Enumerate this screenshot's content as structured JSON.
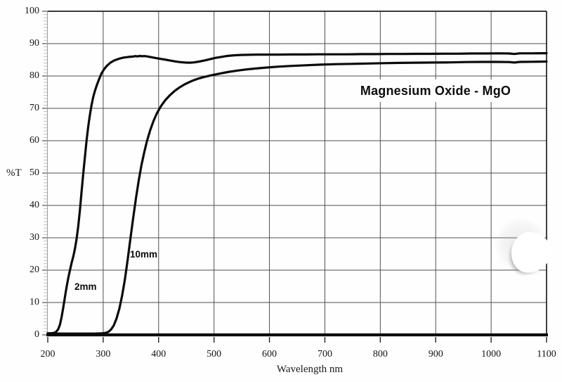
{
  "chart_data": {
    "type": "line",
    "title": "Magnesium Oxide - MgO",
    "xlabel": "Wavelength nm",
    "ylabel": "%T",
    "xlim": [
      200,
      1100
    ],
    "ylim": [
      0,
      100
    ],
    "x_ticks": [
      200,
      300,
      400,
      500,
      600,
      700,
      800,
      900,
      1000,
      1100
    ],
    "y_ticks": [
      0,
      10,
      20,
      30,
      40,
      50,
      60,
      70,
      80,
      90,
      100
    ],
    "y_minor_tick_step": 1,
    "grid": true,
    "legend_position": "labels-next-to-curves",
    "series": [
      {
        "name": "2mm",
        "points": [
          [
            200,
            0.5
          ],
          [
            206,
            0.5
          ],
          [
            211,
            0.6
          ],
          [
            215,
            0.9
          ],
          [
            219,
            1.8
          ],
          [
            222,
            3.2
          ],
          [
            225,
            5.5
          ],
          [
            228,
            8.5
          ],
          [
            231,
            11.8
          ],
          [
            234,
            14.8
          ],
          [
            237,
            17.6
          ],
          [
            240,
            20.0
          ],
          [
            243,
            22.2
          ],
          [
            246,
            24.2
          ],
          [
            249,
            26.6
          ],
          [
            252,
            29.6
          ],
          [
            255,
            33.6
          ],
          [
            258,
            38.6
          ],
          [
            261,
            44.2
          ],
          [
            264,
            49.8
          ],
          [
            267,
            55.0
          ],
          [
            270,
            60.0
          ],
          [
            273,
            64.4
          ],
          [
            276,
            68.0
          ],
          [
            279,
            71.0
          ],
          [
            282,
            73.5
          ],
          [
            285,
            75.4
          ],
          [
            289,
            77.4
          ],
          [
            293,
            79.2
          ],
          [
            297,
            80.8
          ],
          [
            302,
            82.2
          ],
          [
            307,
            83.2
          ],
          [
            313,
            84.1
          ],
          [
            320,
            84.8
          ],
          [
            328,
            85.3
          ],
          [
            337,
            85.7
          ],
          [
            346,
            85.9
          ],
          [
            354,
            86.0
          ],
          [
            358,
            86.15
          ],
          [
            362,
            86.05
          ],
          [
            366,
            86.2
          ],
          [
            370,
            86.1
          ],
          [
            375,
            86.15
          ],
          [
            381,
            86.0
          ],
          [
            390,
            85.7
          ],
          [
            400,
            85.4
          ],
          [
            410,
            85.1
          ],
          [
            420,
            84.8
          ],
          [
            430,
            84.5
          ],
          [
            440,
            84.25
          ],
          [
            448,
            84.15
          ],
          [
            456,
            84.1
          ],
          [
            464,
            84.2
          ],
          [
            473,
            84.45
          ],
          [
            483,
            84.8
          ],
          [
            493,
            85.2
          ],
          [
            503,
            85.6
          ],
          [
            513,
            85.9
          ],
          [
            524,
            86.2
          ],
          [
            536,
            86.4
          ],
          [
            548,
            86.5
          ],
          [
            562,
            86.55
          ],
          [
            578,
            86.6
          ],
          [
            595,
            86.6
          ],
          [
            615,
            86.6
          ],
          [
            640,
            86.65
          ],
          [
            665,
            86.65
          ],
          [
            690,
            86.7
          ],
          [
            715,
            86.7
          ],
          [
            740,
            86.7
          ],
          [
            765,
            86.75
          ],
          [
            790,
            86.75
          ],
          [
            815,
            86.8
          ],
          [
            840,
            86.8
          ],
          [
            865,
            86.85
          ],
          [
            890,
            86.85
          ],
          [
            915,
            86.9
          ],
          [
            940,
            86.9
          ],
          [
            965,
            86.95
          ],
          [
            990,
            86.95
          ],
          [
            1015,
            87.0
          ],
          [
            1032,
            86.95
          ],
          [
            1042,
            86.8
          ],
          [
            1052,
            87.0
          ],
          [
            1075,
            87.0
          ],
          [
            1100,
            87.05
          ]
        ]
      },
      {
        "name": "10mm",
        "points": [
          [
            200,
            0.4
          ],
          [
            250,
            0.4
          ],
          [
            285,
            0.4
          ],
          [
            297,
            0.45
          ],
          [
            304,
            0.6
          ],
          [
            309,
            0.9
          ],
          [
            314,
            1.6
          ],
          [
            319,
            2.9
          ],
          [
            324,
            5.0
          ],
          [
            329,
            8.0
          ],
          [
            334,
            12.0
          ],
          [
            339,
            17.0
          ],
          [
            344,
            23.0
          ],
          [
            349,
            29.5
          ],
          [
            354,
            36.0
          ],
          [
            359,
            42.0
          ],
          [
            364,
            47.6
          ],
          [
            369,
            52.4
          ],
          [
            374,
            56.4
          ],
          [
            379,
            59.9
          ],
          [
            385,
            63.3
          ],
          [
            391,
            66.2
          ],
          [
            397,
            68.5
          ],
          [
            404,
            70.6
          ],
          [
            412,
            72.5
          ],
          [
            420,
            74.0
          ],
          [
            429,
            75.4
          ],
          [
            438,
            76.5
          ],
          [
            448,
            77.5
          ],
          [
            459,
            78.4
          ],
          [
            470,
            79.1
          ],
          [
            482,
            79.7
          ],
          [
            495,
            80.2
          ],
          [
            509,
            80.7
          ],
          [
            524,
            81.2
          ],
          [
            540,
            81.6
          ],
          [
            557,
            82.0
          ],
          [
            575,
            82.3
          ],
          [
            595,
            82.6
          ],
          [
            617,
            82.9
          ],
          [
            640,
            83.1
          ],
          [
            665,
            83.3
          ],
          [
            692,
            83.5
          ],
          [
            720,
            83.65
          ],
          [
            748,
            83.75
          ],
          [
            776,
            83.85
          ],
          [
            805,
            83.95
          ],
          [
            835,
            84.05
          ],
          [
            865,
            84.1
          ],
          [
            895,
            84.15
          ],
          [
            925,
            84.2
          ],
          [
            955,
            84.3
          ],
          [
            985,
            84.35
          ],
          [
            1010,
            84.35
          ],
          [
            1032,
            84.3
          ],
          [
            1042,
            84.15
          ],
          [
            1052,
            84.35
          ],
          [
            1075,
            84.4
          ],
          [
            1100,
            84.45
          ]
        ]
      }
    ]
  },
  "colors": {
    "curve": "#0a0a0a",
    "grid": "#4f4f4f",
    "axis_heavy": "#0d0d0d",
    "box_edge": "#1f1f1f",
    "left_axis": "#9a9a9a",
    "minor_tick": "#c0c0c0",
    "major_tick": "#555555",
    "x_tick": "#222222",
    "background": "#ffffff",
    "text": "#111111"
  }
}
